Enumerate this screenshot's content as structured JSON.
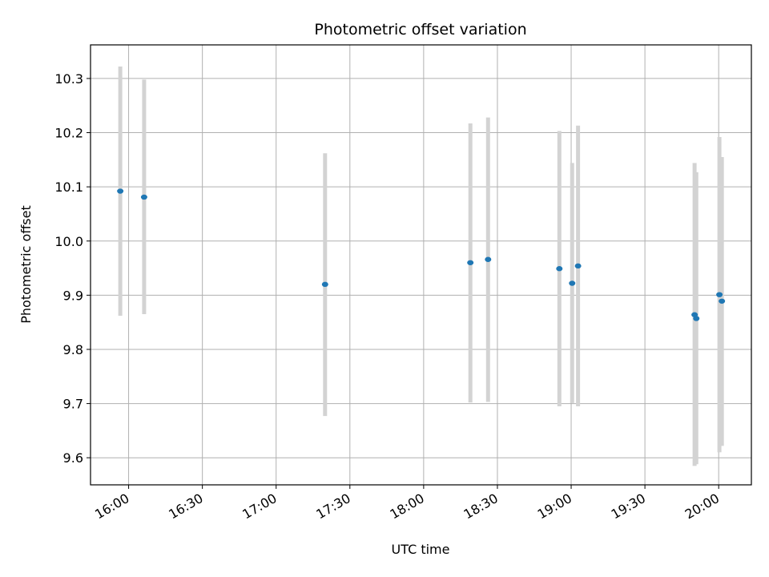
{
  "chart_data": {
    "type": "scatter",
    "title": "Photometric offset variation",
    "xlabel": "UTC time",
    "ylabel": "Photometric offset",
    "grid": true,
    "x_unit": "minutes since 00:00 UTC",
    "xlim": [
      944.5,
      1213.3
    ],
    "ylim": [
      9.55,
      10.362
    ],
    "x_ticks": [
      {
        "value": 960,
        "label": "16:00"
      },
      {
        "value": 990,
        "label": "16:30"
      },
      {
        "value": 1020,
        "label": "17:00"
      },
      {
        "value": 1050,
        "label": "17:30"
      },
      {
        "value": 1080,
        "label": "18:00"
      },
      {
        "value": 1110,
        "label": "18:30"
      },
      {
        "value": 1140,
        "label": "19:00"
      },
      {
        "value": 1170,
        "label": "19:30"
      },
      {
        "value": 1200,
        "label": "20:00"
      }
    ],
    "y_ticks": [
      {
        "value": 9.6,
        "label": "9.6"
      },
      {
        "value": 9.7,
        "label": "9.7"
      },
      {
        "value": 9.8,
        "label": "9.8"
      },
      {
        "value": 9.9,
        "label": "9.9"
      },
      {
        "value": 10.0,
        "label": "10.0"
      },
      {
        "value": 10.1,
        "label": "10.1"
      },
      {
        "value": 10.2,
        "label": "10.2"
      },
      {
        "value": 10.3,
        "label": "10.3"
      }
    ],
    "series": [
      {
        "name": "Photometric offset",
        "color": "#1f77b4",
        "errorbar_color": "#d3d3d3",
        "points": [
          {
            "x": 956.6,
            "y": 10.092,
            "ylo": 9.862,
            "yhi": 10.322
          },
          {
            "x": 966.3,
            "y": 10.081,
            "ylo": 9.865,
            "yhi": 10.298
          },
          {
            "x": 1039.9,
            "y": 9.92,
            "ylo": 9.677,
            "yhi": 10.162
          },
          {
            "x": 1099.0,
            "y": 9.96,
            "ylo": 9.702,
            "yhi": 10.217
          },
          {
            "x": 1106.2,
            "y": 9.966,
            "ylo": 9.703,
            "yhi": 10.228
          },
          {
            "x": 1135.2,
            "y": 9.949,
            "ylo": 9.695,
            "yhi": 10.203
          },
          {
            "x": 1140.4,
            "y": 9.922,
            "ylo": 9.701,
            "yhi": 10.144
          },
          {
            "x": 1142.8,
            "y": 9.954,
            "ylo": 9.695,
            "yhi": 10.213
          },
          {
            "x": 1190.2,
            "y": 9.864,
            "ylo": 9.585,
            "yhi": 10.144
          },
          {
            "x": 1190.9,
            "y": 9.857,
            "ylo": 9.588,
            "yhi": 10.127
          },
          {
            "x": 1200.3,
            "y": 9.901,
            "ylo": 9.61,
            "yhi": 10.192
          },
          {
            "x": 1201.3,
            "y": 9.889,
            "ylo": 9.622,
            "yhi": 10.155
          }
        ]
      }
    ]
  }
}
